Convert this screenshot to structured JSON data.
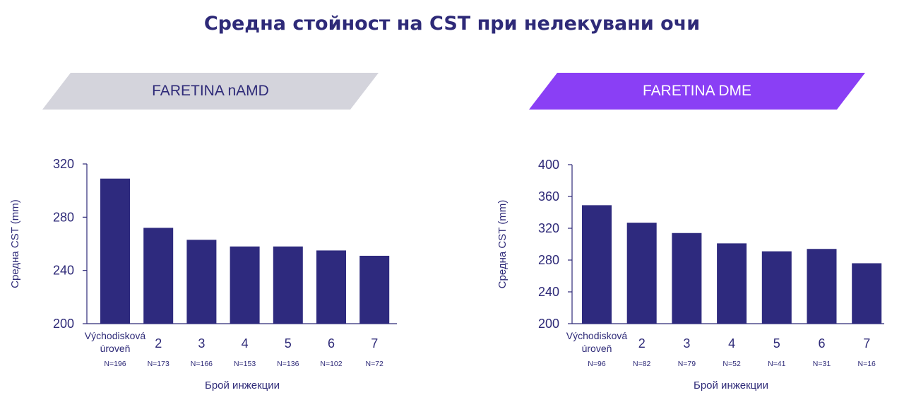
{
  "title": "Средна стойност на CST при нелекувани очи",
  "colors": {
    "bar": "#2e2a7e",
    "text": "#2e2a78",
    "banner_left": "#d4d4dc",
    "banner_right": "#8a3ff5"
  },
  "chart_data": [
    {
      "type": "bar",
      "title": "FARETINA nAMD",
      "ylabel": "Средна CST (mm)",
      "xlabel": "Брой инжекции",
      "ylim": [
        200,
        320
      ],
      "yticks": [
        200,
        240,
        280,
        320
      ],
      "categories": [
        "Východisková úroveň",
        "2",
        "3",
        "4",
        "5",
        "6",
        "7"
      ],
      "n_labels": [
        "N=196",
        "N=173",
        "N=166",
        "N=153",
        "N=136",
        "N=102",
        "N=72"
      ],
      "values": [
        309,
        272,
        263,
        258,
        258,
        255,
        251
      ]
    },
    {
      "type": "bar",
      "title": "FARETINA DME",
      "ylabel": "Средна CST (mm)",
      "xlabel": "Брой инжекции",
      "ylim": [
        200,
        400
      ],
      "yticks": [
        200,
        240,
        280,
        320,
        360,
        400
      ],
      "categories": [
        "Východisková úroveň",
        "2",
        "3",
        "4",
        "5",
        "6",
        "7"
      ],
      "n_labels": [
        "N=96",
        "N=82",
        "N=79",
        "N=52",
        "N=41",
        "N=31",
        "N=16"
      ],
      "values": [
        349,
        327,
        314,
        301,
        291,
        294,
        276
      ]
    }
  ]
}
